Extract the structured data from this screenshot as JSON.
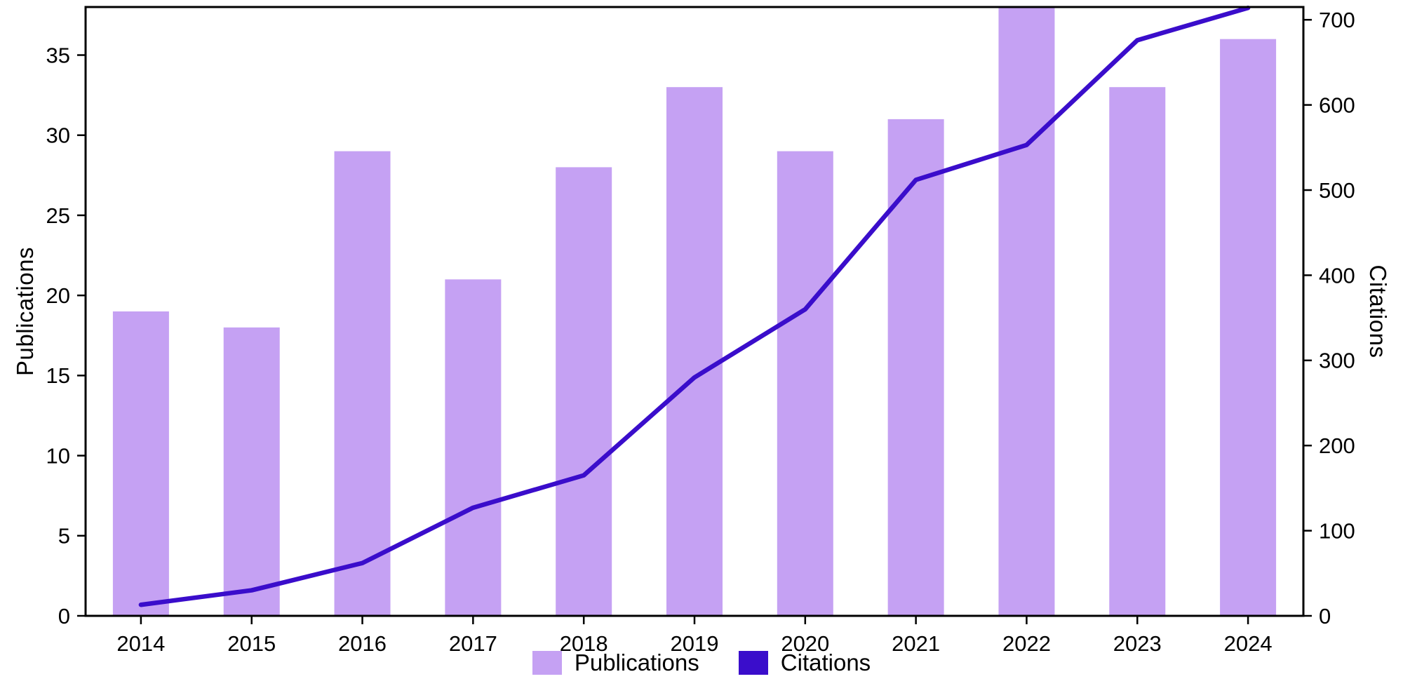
{
  "chart_data": {
    "type": "bar",
    "subtype": "bar+line dual axis",
    "categories": [
      "2014",
      "2015",
      "2016",
      "2017",
      "2018",
      "2019",
      "2020",
      "2021",
      "2022",
      "2023",
      "2024"
    ],
    "series": [
      {
        "name": "Publications",
        "type": "bar",
        "axis": "left",
        "color": "#c5a1f3",
        "values": [
          19,
          18,
          29,
          21,
          28,
          33,
          29,
          31,
          38,
          33,
          36
        ]
      },
      {
        "name": "Citations",
        "type": "line",
        "axis": "right",
        "color": "#3a0dcb",
        "values": [
          13,
          30,
          62,
          127,
          165,
          280,
          360,
          512,
          553,
          676,
          714
        ]
      }
    ],
    "left_axis": {
      "label": "Publications",
      "ticks": [
        0,
        5,
        10,
        15,
        20,
        25,
        30,
        35
      ],
      "min": 0,
      "max": 38
    },
    "right_axis": {
      "label": "Citations",
      "ticks": [
        0,
        100,
        200,
        300,
        400,
        500,
        600,
        700
      ],
      "min": 0,
      "max": 715
    },
    "grid": false,
    "legend_position": "bottom",
    "legend": [
      "Publications",
      "Citations"
    ]
  }
}
